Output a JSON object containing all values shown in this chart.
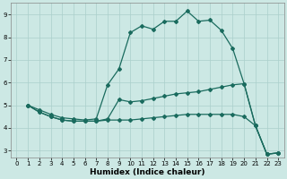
{
  "xlabel": "Humidex (Indice chaleur)",
  "bg_color": "#cce8e4",
  "grid_color": "#aacfcb",
  "line_color": "#1a6b5e",
  "xlim": [
    -0.5,
    23.5
  ],
  "ylim": [
    2.7,
    9.5
  ],
  "yticks": [
    3,
    4,
    5,
    6,
    7,
    8,
    9
  ],
  "xticks": [
    0,
    1,
    2,
    3,
    4,
    5,
    6,
    7,
    8,
    9,
    10,
    11,
    12,
    13,
    14,
    15,
    16,
    17,
    18,
    19,
    20,
    21,
    22,
    23
  ],
  "line1_x": [
    1,
    2,
    3,
    4,
    5,
    6,
    7,
    8,
    9,
    10,
    11,
    12,
    13,
    14,
    15,
    16,
    17,
    18,
    19,
    20,
    21,
    22,
    23
  ],
  "line1_y": [
    5.0,
    4.8,
    4.6,
    4.45,
    4.4,
    4.35,
    4.4,
    5.9,
    6.6,
    8.2,
    8.5,
    8.35,
    8.7,
    8.7,
    9.15,
    8.7,
    8.75,
    8.3,
    7.5,
    5.95,
    4.1,
    2.85,
    2.9
  ],
  "line2_x": [
    1,
    2,
    3,
    4,
    5,
    6,
    7,
    8,
    9,
    10,
    11,
    12,
    13,
    14,
    15,
    16,
    17,
    18,
    19,
    20,
    21,
    22,
    23
  ],
  "line2_y": [
    5.0,
    4.7,
    4.5,
    4.35,
    4.3,
    4.3,
    4.3,
    4.4,
    5.25,
    5.15,
    5.2,
    5.3,
    5.4,
    5.5,
    5.55,
    5.6,
    5.7,
    5.8,
    5.9,
    5.95,
    4.1,
    2.85,
    2.9
  ],
  "line3_x": [
    1,
    2,
    3,
    4,
    5,
    6,
    7,
    8,
    9,
    10,
    11,
    12,
    13,
    14,
    15,
    16,
    17,
    18,
    19,
    20,
    21,
    22,
    23
  ],
  "line3_y": [
    5.0,
    4.7,
    4.5,
    4.35,
    4.3,
    4.3,
    4.3,
    4.35,
    4.35,
    4.35,
    4.4,
    4.45,
    4.5,
    4.55,
    4.6,
    4.6,
    4.6,
    4.6,
    4.6,
    4.5,
    4.1,
    2.85,
    2.9
  ]
}
